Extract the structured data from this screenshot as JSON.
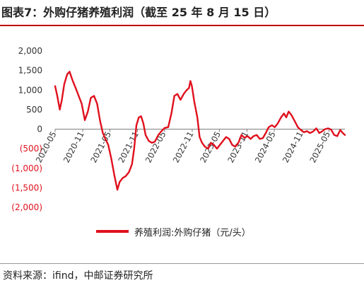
{
  "title": "图表7：外购仔猪养殖利润（截至 25 年 8 月 15 日）",
  "source": "资料来源：ifind，中邮证券研究所",
  "colors": {
    "line": "#e0101d",
    "title_rule": "#c00000",
    "axis": "#7f7f7f",
    "negative_tick": "#e0101d",
    "positive_tick": "#333333"
  },
  "chart_data": {
    "type": "line",
    "title": "",
    "xlabel": "",
    "ylabel": "",
    "ylim": [
      -2000,
      2000
    ],
    "xlim": [
      "2020-05-01",
      "2025-08-15"
    ],
    "grid": false,
    "legend_position": "bottom",
    "y_ticks": [
      {
        "value": 2000,
        "label": "2,000"
      },
      {
        "value": 1500,
        "label": "1,500"
      },
      {
        "value": 1000,
        "label": "1,000"
      },
      {
        "value": 500,
        "label": "500"
      },
      {
        "value": 0,
        "label": "0"
      },
      {
        "value": -500,
        "label": "(500)"
      },
      {
        "value": -1000,
        "label": "(1,000)"
      },
      {
        "value": -1500,
        "label": "(1,500)"
      },
      {
        "value": -2000,
        "label": "(2,000)"
      }
    ],
    "x_ticks": [
      {
        "date": "2020-05-01",
        "label": "2020-05"
      },
      {
        "date": "2020-11-01",
        "label": "2020-11"
      },
      {
        "date": "2021-05-01",
        "label": "2021-05"
      },
      {
        "date": "2021-11-01",
        "label": "2021-11"
      },
      {
        "date": "2022-05-01",
        "label": "2022-05"
      },
      {
        "date": "2022-11-01",
        "label": "2022-11"
      },
      {
        "date": "2023-05-01",
        "label": "2023-05"
      },
      {
        "date": "2023-11-01",
        "label": "2023-11"
      },
      {
        "date": "2024-05-01",
        "label": "2024-05"
      },
      {
        "date": "2024-11-01",
        "label": "2024-11"
      },
      {
        "date": "2025-05-01",
        "label": "2025-05"
      }
    ],
    "series": [
      {
        "name": "养殖利润:外购仔猪（元/头）",
        "points": [
          [
            "2020-05-01",
            1100
          ],
          [
            "2020-05-15",
            850
          ],
          [
            "2020-06-01",
            500
          ],
          [
            "2020-06-15",
            750
          ],
          [
            "2020-07-01",
            1150
          ],
          [
            "2020-07-20",
            1400
          ],
          [
            "2020-08-05",
            1470
          ],
          [
            "2020-08-25",
            1250
          ],
          [
            "2020-09-15",
            1050
          ],
          [
            "2020-10-05",
            850
          ],
          [
            "2020-10-25",
            650
          ],
          [
            "2020-11-15",
            230
          ],
          [
            "2020-12-05",
            450
          ],
          [
            "2020-12-25",
            800
          ],
          [
            "2021-01-15",
            850
          ],
          [
            "2021-02-05",
            650
          ],
          [
            "2021-02-25",
            200
          ],
          [
            "2021-03-15",
            -100
          ],
          [
            "2021-04-01",
            -250
          ],
          [
            "2021-04-20",
            -400
          ],
          [
            "2021-05-10",
            -750
          ],
          [
            "2021-06-01",
            -1200
          ],
          [
            "2021-06-20",
            -1550
          ],
          [
            "2021-07-05",
            -1350
          ],
          [
            "2021-07-25",
            -1250
          ],
          [
            "2021-08-15",
            -1200
          ],
          [
            "2021-09-05",
            -1100
          ],
          [
            "2021-09-25",
            -900
          ],
          [
            "2021-10-10",
            -500
          ],
          [
            "2021-10-25",
            100
          ],
          [
            "2021-11-10",
            300
          ],
          [
            "2021-11-25",
            330
          ],
          [
            "2021-12-10",
            150
          ],
          [
            "2021-12-25",
            -150
          ],
          [
            "2022-01-15",
            -300
          ],
          [
            "2022-02-05",
            -350
          ],
          [
            "2022-02-25",
            -320
          ],
          [
            "2022-03-20",
            -150
          ],
          [
            "2022-04-10",
            -50
          ],
          [
            "2022-05-01",
            30
          ],
          [
            "2022-05-25",
            50
          ],
          [
            "2022-06-15",
            400
          ],
          [
            "2022-07-05",
            850
          ],
          [
            "2022-07-25",
            900
          ],
          [
            "2022-08-15",
            750
          ],
          [
            "2022-09-05",
            900
          ],
          [
            "2022-09-25",
            1000
          ],
          [
            "2022-10-10",
            1050
          ],
          [
            "2022-10-20",
            1230
          ],
          [
            "2022-10-30",
            1100
          ],
          [
            "2022-11-15",
            700
          ],
          [
            "2022-12-05",
            300
          ],
          [
            "2022-12-20",
            -200
          ],
          [
            "2023-01-05",
            -350
          ],
          [
            "2023-01-25",
            -450
          ],
          [
            "2023-02-15",
            -500
          ],
          [
            "2023-03-05",
            -350
          ],
          [
            "2023-03-25",
            -400
          ],
          [
            "2023-04-15",
            -500
          ],
          [
            "2023-05-05",
            -400
          ],
          [
            "2023-05-25",
            -300
          ],
          [
            "2023-06-15",
            -200
          ],
          [
            "2023-07-05",
            -250
          ],
          [
            "2023-07-25",
            -400
          ],
          [
            "2023-08-15",
            -450
          ],
          [
            "2023-09-05",
            -350
          ],
          [
            "2023-09-25",
            -150
          ],
          [
            "2023-10-15",
            -220
          ],
          [
            "2023-11-05",
            -180
          ],
          [
            "2023-11-25",
            -250
          ],
          [
            "2023-12-15",
            -180
          ],
          [
            "2024-01-05",
            -150
          ],
          [
            "2024-01-25",
            -250
          ],
          [
            "2024-02-15",
            -230
          ],
          [
            "2024-03-05",
            -100
          ],
          [
            "2024-03-25",
            50
          ],
          [
            "2024-04-15",
            100
          ],
          [
            "2024-05-05",
            50
          ],
          [
            "2024-05-25",
            150
          ],
          [
            "2024-06-15",
            300
          ],
          [
            "2024-07-05",
            400
          ],
          [
            "2024-07-20",
            300
          ],
          [
            "2024-08-05",
            450
          ],
          [
            "2024-08-25",
            350
          ],
          [
            "2024-09-15",
            200
          ],
          [
            "2024-10-05",
            50
          ],
          [
            "2024-10-25",
            -20
          ],
          [
            "2024-11-15",
            -80
          ],
          [
            "2024-12-05",
            -50
          ],
          [
            "2024-12-25",
            -100
          ],
          [
            "2025-01-15",
            -60
          ],
          [
            "2025-02-05",
            20
          ],
          [
            "2025-02-25",
            -100
          ],
          [
            "2025-03-15",
            -60
          ],
          [
            "2025-04-05",
            0
          ],
          [
            "2025-04-25",
            20
          ],
          [
            "2025-05-15",
            -10
          ],
          [
            "2025-06-05",
            -150
          ],
          [
            "2025-06-25",
            -180
          ],
          [
            "2025-07-15",
            -20
          ],
          [
            "2025-08-01",
            -100
          ],
          [
            "2025-08-15",
            -150
          ]
        ]
      }
    ]
  }
}
